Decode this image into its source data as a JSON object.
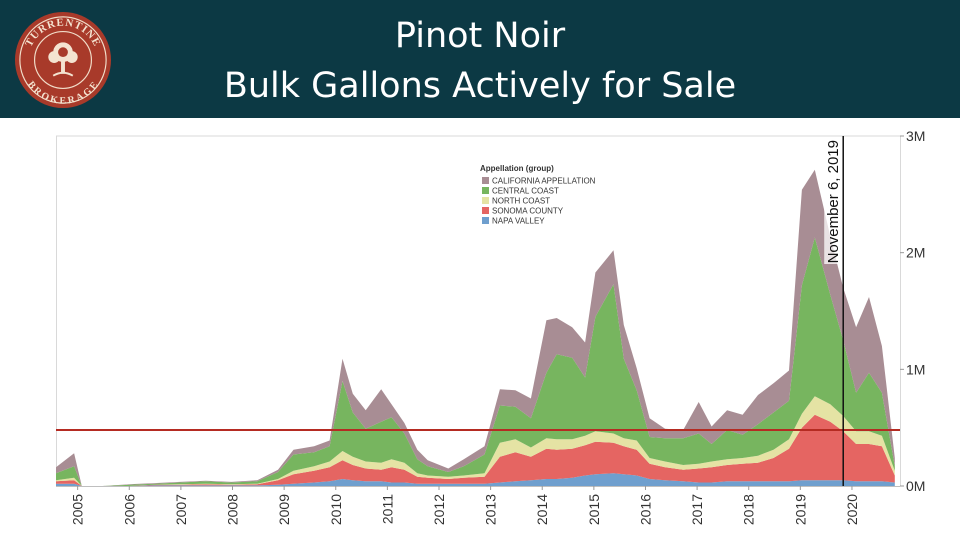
{
  "title": {
    "line1": "Pinot Noir",
    "line2": "Bulk Gallons Actively for Sale"
  },
  "logo": {
    "text_top": "TURRENTINE",
    "text_bottom": "BROKERAGE",
    "icon": "tree-seal-icon",
    "color": "#a83a2a"
  },
  "colors": {
    "header_bg": "#0c3944",
    "california_appellation": "#a88d94",
    "central_coast": "#77b55f",
    "north_coast": "#e5e3a4",
    "sonoma_county": "#e56562",
    "napa_valley": "#6f9fce",
    "reference_line": "#b52b22"
  },
  "annotation": {
    "label": "November 6, 2019",
    "x": 2019.85
  },
  "chart_data": {
    "type": "area",
    "stacked": true,
    "x_unit": "year",
    "y_unit": "gallons",
    "xlim": [
      2004.6,
      2020.95
    ],
    "ylim": [
      0,
      3000000
    ],
    "y_axis_position": "right",
    "y_ticks": [
      {
        "value": 0,
        "label": "0M"
      },
      {
        "value": 1000000,
        "label": "1M"
      },
      {
        "value": 2000000,
        "label": "2M"
      },
      {
        "value": 3000000,
        "label": "3M"
      }
    ],
    "x_ticks": [
      "2005",
      "2006",
      "2007",
      "2008",
      "2009",
      "2010",
      "2011",
      "2012",
      "2013",
      "2014",
      "2015",
      "2016",
      "2017",
      "2018",
      "2019",
      "2020"
    ],
    "grid": false,
    "reference_line_value": 480000,
    "legend": {
      "title": "Appellation (group)",
      "position": "top-center",
      "entries": [
        "CALIFORNIA APPELLATION",
        "CENTRAL COAST",
        "NORTH COAST",
        "SONOMA COUNTY",
        "NAPA VALLEY"
      ]
    },
    "x": [
      2004.6,
      2004.95,
      2005.1,
      2005.2,
      2005.5,
      2006.0,
      2006.5,
      2007.0,
      2007.5,
      2008.0,
      2008.5,
      2008.9,
      2009.2,
      2009.6,
      2009.9,
      2010.15,
      2010.35,
      2010.6,
      2010.9,
      2011.1,
      2011.35,
      2011.6,
      2011.8,
      2012.2,
      2012.5,
      2012.9,
      2013.2,
      2013.5,
      2013.8,
      2014.1,
      2014.3,
      2014.6,
      2014.85,
      2015.05,
      2015.4,
      2015.6,
      2015.85,
      2016.1,
      2016.4,
      2016.75,
      2017.05,
      2017.3,
      2017.6,
      2017.9,
      2018.2,
      2018.5,
      2018.8,
      2019.05,
      2019.3,
      2019.6,
      2019.85,
      2020.1,
      2020.35,
      2020.6,
      2020.85
    ],
    "series": [
      {
        "name": "NAPA VALLEY",
        "values": [
          20000,
          20000,
          0,
          0,
          0,
          0,
          5000,
          5000,
          5000,
          5000,
          5000,
          10000,
          20000,
          30000,
          40000,
          60000,
          50000,
          40000,
          40000,
          30000,
          30000,
          20000,
          20000,
          20000,
          20000,
          20000,
          30000,
          40000,
          50000,
          60000,
          60000,
          70000,
          90000,
          100000,
          110000,
          100000,
          90000,
          60000,
          50000,
          40000,
          30000,
          30000,
          40000,
          40000,
          40000,
          40000,
          40000,
          50000,
          50000,
          50000,
          50000,
          40000,
          40000,
          40000,
          30000
        ]
      },
      {
        "name": "SONOMA COUNTY",
        "values": [
          20000,
          30000,
          0,
          0,
          0,
          0,
          5000,
          5000,
          10000,
          5000,
          10000,
          40000,
          80000,
          100000,
          120000,
          160000,
          130000,
          110000,
          100000,
          130000,
          110000,
          60000,
          50000,
          40000,
          50000,
          60000,
          220000,
          250000,
          200000,
          260000,
          250000,
          250000,
          260000,
          280000,
          260000,
          240000,
          220000,
          130000,
          110000,
          100000,
          120000,
          130000,
          140000,
          150000,
          160000,
          200000,
          280000,
          450000,
          560000,
          500000,
          420000,
          320000,
          320000,
          300000,
          60000
        ]
      },
      {
        "name": "NORTH COAST",
        "values": [
          10000,
          20000,
          0,
          0,
          0,
          0,
          0,
          5000,
          5000,
          5000,
          5000,
          10000,
          30000,
          40000,
          50000,
          80000,
          70000,
          60000,
          60000,
          70000,
          60000,
          30000,
          20000,
          20000,
          20000,
          30000,
          120000,
          110000,
          80000,
          90000,
          90000,
          80000,
          80000,
          90000,
          80000,
          70000,
          80000,
          50000,
          50000,
          40000,
          40000,
          50000,
          50000,
          50000,
          60000,
          70000,
          80000,
          120000,
          160000,
          150000,
          130000,
          110000,
          110000,
          90000,
          40000
        ]
      },
      {
        "name": "CENTRAL COAST",
        "values": [
          60000,
          100000,
          0,
          0,
          0,
          10000,
          10000,
          15000,
          20000,
          15000,
          20000,
          60000,
          140000,
          120000,
          130000,
          600000,
          380000,
          280000,
          350000,
          360000,
          250000,
          120000,
          80000,
          40000,
          80000,
          160000,
          320000,
          280000,
          250000,
          560000,
          730000,
          700000,
          500000,
          980000,
          1280000,
          680000,
          430000,
          180000,
          200000,
          230000,
          260000,
          150000,
          250000,
          200000,
          270000,
          320000,
          330000,
          1100000,
          1360000,
          940000,
          650000,
          330000,
          500000,
          370000,
          40000
        ]
      },
      {
        "name": "CALIFORNIA APPELLATION",
        "values": [
          50000,
          110000,
          0,
          0,
          0,
          5000,
          5000,
          5000,
          5000,
          5000,
          10000,
          20000,
          40000,
          50000,
          50000,
          190000,
          160000,
          160000,
          280000,
          110000,
          90000,
          80000,
          50000,
          30000,
          60000,
          70000,
          140000,
          140000,
          170000,
          450000,
          310000,
          260000,
          300000,
          380000,
          290000,
          290000,
          190000,
          160000,
          80000,
          70000,
          270000,
          150000,
          170000,
          170000,
          250000,
          250000,
          260000,
          820000,
          580000,
          500000,
          450000,
          560000,
          650000,
          400000,
          70000
        ]
      }
    ]
  }
}
